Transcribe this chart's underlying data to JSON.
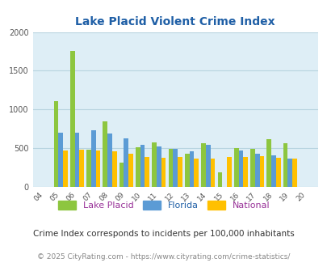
{
  "title": "Lake Placid Violent Crime Index",
  "years": [
    "04",
    "05",
    "06",
    "07",
    "08",
    "09",
    "10",
    "11",
    "12",
    "13",
    "14",
    "15",
    "16",
    "17",
    "18",
    "19",
    "20"
  ],
  "lake_placid": [
    0,
    1110,
    1760,
    480,
    850,
    310,
    510,
    575,
    495,
    430,
    560,
    185,
    500,
    495,
    615,
    560,
    0
  ],
  "florida": [
    0,
    700,
    700,
    735,
    690,
    625,
    545,
    520,
    495,
    460,
    545,
    0,
    470,
    430,
    405,
    370,
    0
  ],
  "national": [
    0,
    470,
    480,
    470,
    455,
    425,
    390,
    380,
    385,
    370,
    365,
    385,
    390,
    395,
    375,
    365,
    0
  ],
  "bar_width": 0.28,
  "ylim": [
    0,
    2000
  ],
  "yticks": [
    0,
    500,
    1000,
    1500,
    2000
  ],
  "color_lp": "#8dc63f",
  "color_fl": "#5b9bd5",
  "color_na": "#ffc000",
  "bg_color": "#deeef6",
  "fig_bg": "#ffffff",
  "grid_color": "#b8d4e0",
  "title_color": "#1f5fa6",
  "legend_lp": "Lake Placid",
  "legend_fl": "Florida",
  "legend_na": "National",
  "legend_lp_color": "#993399",
  "legend_fl_color": "#1f5fa6",
  "legend_na_color": "#993399",
  "footnote1": "Crime Index corresponds to incidents per 100,000 inhabitants",
  "footnote2": "© 2025 CityRating.com - https://www.cityrating.com/crime-statistics/",
  "footnote1_color": "#333333",
  "footnote2_color": "#888888"
}
